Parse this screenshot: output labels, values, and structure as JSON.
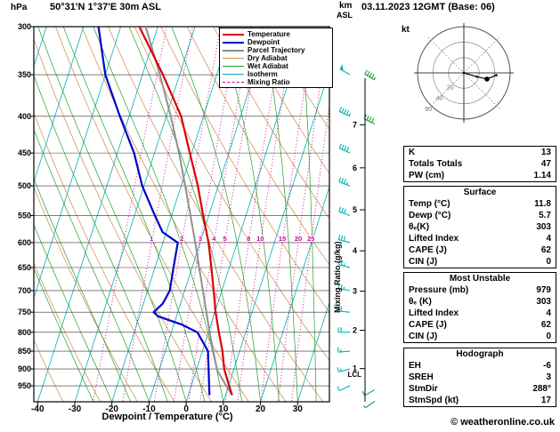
{
  "header": {
    "station": "50°31'N 1°37'E 30m ASL",
    "datetime": "03.11.2023 12GMT (Base: 06)"
  },
  "labels": {
    "hpa": "hPa",
    "km": "km",
    "asl": "ASL",
    "kt": "kt",
    "lcl": "LCL",
    "xlabel": "Dewpoint / Temperature (°C)",
    "mixing_ratio_axis": "Mixing Ratio (g/kg)"
  },
  "footer": {
    "copyright": "© weatheronline.co.uk"
  },
  "legend": {
    "items": [
      {
        "label": "Temperature"
      },
      {
        "label": "Dewpoint"
      },
      {
        "label": "Parcel Trajectory"
      },
      {
        "label": "Dry Adiabat"
      },
      {
        "label": "Wet Adiabat"
      },
      {
        "label": "Isotherm"
      },
      {
        "label": "Mixing Ratio"
      }
    ]
  },
  "tables": {
    "indices": {
      "rows": [
        {
          "label": "K",
          "value": "13"
        },
        {
          "label": "Totals Totals",
          "value": "47"
        },
        {
          "label": "PW (cm)",
          "value": "1.14"
        }
      ]
    },
    "surface": {
      "title": "Surface",
      "rows": [
        {
          "label": "Temp (°C)",
          "value": "11.8"
        },
        {
          "label": "Dewp (°C)",
          "value": "5.7"
        },
        {
          "label": "θₑ(K)",
          "value": "303"
        },
        {
          "label": "Lifted Index",
          "value": "4"
        },
        {
          "label": "CAPE (J)",
          "value": "62"
        },
        {
          "label": "CIN (J)",
          "value": "0"
        }
      ]
    },
    "most_unstable": {
      "title": "Most Unstable",
      "rows": [
        {
          "label": "Pressure (mb)",
          "value": "979"
        },
        {
          "label": "θₑ (K)",
          "value": "303"
        },
        {
          "label": "Lifted Index",
          "value": "4"
        },
        {
          "label": "CAPE (J)",
          "value": "62"
        },
        {
          "label": "CIN (J)",
          "value": "0"
        }
      ]
    },
    "hodograph": {
      "title": "Hodograph",
      "rows": [
        {
          "label": "EH",
          "value": "-6"
        },
        {
          "label": "SREH",
          "value": "3"
        },
        {
          "label": "StmDir",
          "value": "288°"
        },
        {
          "label": "StmSpd (kt)",
          "value": "17"
        }
      ]
    }
  },
  "colors": {
    "temperature": "#dd0000",
    "dewpoint": "#0000cc",
    "parcel": "#909090",
    "dry_adiabat": "#cc8a4a",
    "wet_adiabat": "#22a02c",
    "isotherm": "#00b2b2",
    "mixing_ratio": "#cc0099",
    "wind_barb": "#00b2b2",
    "wind_barb_green": "#22a02c",
    "axis": "#000000"
  },
  "chart_data": {
    "type": "skewt-log-p",
    "title": "50°31'N 1°37'E 30m ASL",
    "xlabel": "Dewpoint / Temperature (°C)",
    "pressure_axis_hpa": [
      300,
      350,
      400,
      450,
      500,
      550,
      600,
      650,
      700,
      750,
      800,
      850,
      900,
      950
    ],
    "temp_axis_c": [
      -40,
      -30,
      -20,
      -10,
      0,
      10,
      20,
      30
    ],
    "km_asl_ticks": [
      {
        "km": 1,
        "p_hpa": 899
      },
      {
        "km": 2,
        "p_hpa": 795
      },
      {
        "km": 3,
        "p_hpa": 701
      },
      {
        "km": 4,
        "p_hpa": 616
      },
      {
        "km": 5,
        "p_hpa": 540
      },
      {
        "km": 6,
        "p_hpa": 472
      },
      {
        "km": 7,
        "p_hpa": 411
      }
    ],
    "lcl_pressure_hpa": 905,
    "isotherms_c": {
      "min": -110,
      "max": 40,
      "step": 10
    },
    "dry_adiabats_theta_k": [
      240,
      250,
      260,
      270,
      280,
      290,
      300,
      310,
      320,
      330,
      340,
      350,
      360,
      370,
      380,
      390,
      400
    ],
    "wet_adiabats_start_c": [
      -25,
      -20,
      -15,
      -10,
      -5,
      0,
      5,
      10,
      15,
      20,
      25,
      30,
      35
    ],
    "mixing_ratio_lines_gkg": [
      0.5,
      1,
      2,
      3,
      4,
      5,
      8,
      10,
      15,
      20,
      25
    ],
    "mixing_ratio_labels_gkg": [
      1,
      2,
      3,
      4,
      5,
      8,
      10,
      15,
      20,
      25
    ],
    "temperature_profile_p_t": [
      [
        979,
        11.8
      ],
      [
        950,
        10.2
      ],
      [
        925,
        8.8
      ],
      [
        900,
        7.4
      ],
      [
        850,
        5.4
      ],
      [
        800,
        2.8
      ],
      [
        750,
        0.2
      ],
      [
        700,
        -2.2
      ],
      [
        650,
        -4.8
      ],
      [
        600,
        -7.7
      ],
      [
        550,
        -11.5
      ],
      [
        500,
        -15.5
      ],
      [
        450,
        -20.5
      ],
      [
        400,
        -26.0
      ],
      [
        350,
        -34.5
      ],
      [
        300,
        -45.0
      ]
    ],
    "dewpoint_profile_p_t": [
      [
        979,
        5.7
      ],
      [
        950,
        4.8
      ],
      [
        925,
        4.0
      ],
      [
        900,
        3.2
      ],
      [
        850,
        1.5
      ],
      [
        800,
        -3.0
      ],
      [
        780,
        -8.0
      ],
      [
        760,
        -15.0
      ],
      [
        750,
        -16.5
      ],
      [
        730,
        -14.8
      ],
      [
        700,
        -14.0
      ],
      [
        650,
        -15.0
      ],
      [
        600,
        -16.0
      ],
      [
        580,
        -21.0
      ],
      [
        550,
        -24.5
      ],
      [
        500,
        -30.5
      ],
      [
        450,
        -35.5
      ],
      [
        400,
        -42.5
      ],
      [
        350,
        -50.0
      ],
      [
        300,
        -56.0
      ]
    ],
    "parcel_profile_p_t": [
      [
        979,
        11.8
      ],
      [
        950,
        9.4
      ],
      [
        905,
        5.7
      ],
      [
        850,
        2.9
      ],
      [
        800,
        0.3
      ],
      [
        750,
        -2.3
      ],
      [
        700,
        -5.1
      ],
      [
        650,
        -8.1
      ],
      [
        600,
        -11.3
      ],
      [
        550,
        -14.9
      ],
      [
        500,
        -18.9
      ],
      [
        450,
        -23.4
      ],
      [
        400,
        -28.8
      ],
      [
        350,
        -35.3
      ],
      [
        300,
        -43.3
      ]
    ],
    "wind_barbs_p_kt_dir": [
      [
        950,
        10,
        245
      ],
      [
        900,
        15,
        255
      ],
      [
        850,
        15,
        265
      ],
      [
        800,
        20,
        270
      ],
      [
        750,
        20,
        275
      ],
      [
        700,
        25,
        280
      ],
      [
        650,
        25,
        285
      ],
      [
        600,
        30,
        285
      ],
      [
        550,
        30,
        290
      ],
      [
        500,
        35,
        290
      ],
      [
        450,
        40,
        295
      ],
      [
        400,
        45,
        295
      ],
      [
        350,
        50,
        300
      ]
    ],
    "wind_barbs_green_p_kt_dir": [
      [
        356,
        45,
        300
      ],
      [
        410,
        40,
        295
      ],
      [
        962,
        10,
        240
      ],
      [
        998,
        8,
        235
      ]
    ],
    "hodograph": {
      "rings_kt": [
        20,
        40,
        60
      ],
      "trace_uv_kt": [
        [
          0,
          0
        ],
        [
          17,
          -5
        ],
        [
          30,
          -8
        ],
        [
          42,
          -3
        ]
      ],
      "storm_motion_uv_kt": [
        30,
        -8
      ]
    }
  }
}
